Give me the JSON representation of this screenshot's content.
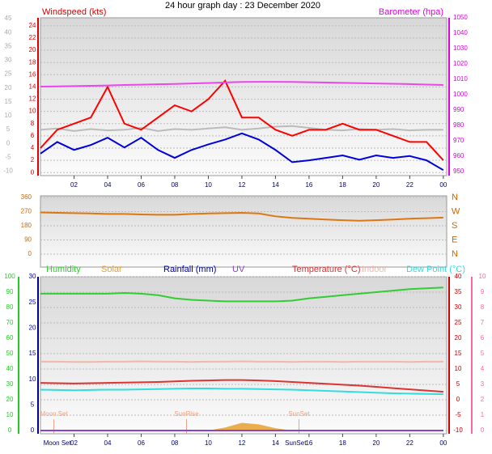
{
  "chart_data": [
    {
      "type": "line",
      "title": "24 hour graph day : 23 December 2020",
      "ylabel": "Windspeed (kts)",
      "y2label": "Barometer (hpa)",
      "x": [
        0,
        1,
        2,
        3,
        4,
        5,
        6,
        7,
        8,
        9,
        10,
        11,
        12,
        13,
        14,
        15,
        16,
        17,
        18,
        19,
        20,
        21,
        22,
        23,
        24
      ],
      "xlim": [
        0,
        24.2
      ],
      "xticks": [
        {
          "value": 2,
          "label": "02"
        },
        {
          "value": 4,
          "label": "04"
        },
        {
          "value": 6,
          "label": "06"
        },
        {
          "value": 8,
          "label": "08"
        },
        10,
        12,
        14,
        16,
        18,
        20,
        22,
        {
          "value": 24,
          "label": "00"
        }
      ],
      "ylim": [
        -0.5,
        25.3
      ],
      "yticks": [
        0,
        2,
        4,
        6,
        8,
        10,
        12,
        14,
        16,
        18,
        20,
        22,
        24
      ],
      "y2lim": [
        947.4,
        1050
      ],
      "y2ticks": [
        950,
        960,
        970,
        980,
        990,
        1000,
        1010,
        1020,
        1030,
        1040,
        1050
      ],
      "y3lim": [
        -11.6,
        45.3
      ],
      "y3ticks": [
        -10,
        -5,
        0,
        5,
        10,
        15,
        20,
        25,
        30,
        35,
        40,
        45
      ],
      "axis_colors": {
        "y": "#dd0000",
        "y2": "#dd00dd",
        "y3": "#aaaaaa"
      },
      "grid": true,
      "series": [
        {
          "color": "#bbbbbb",
          "values": [
            7.0,
            7.2,
            6.8,
            7.1,
            6.9,
            7.0,
            7.3,
            6.8,
            7.1,
            7.0,
            7.2,
            7.4,
            7.0,
            7.2,
            7.5,
            7.6,
            7.3,
            7.0,
            6.9,
            7.1,
            7.0,
            7.1,
            6.9,
            7.0,
            7.0
          ]
        },
        {
          "color": "#ff0000",
          "values": [
            4,
            7,
            8,
            9,
            14,
            8,
            7,
            9,
            11,
            10,
            12,
            15,
            9,
            9,
            7,
            6,
            7,
            7,
            8,
            7,
            7,
            6,
            5,
            5,
            2
          ]
        },
        {
          "color": "#0000dd",
          "values": [
            3.1,
            5.0,
            3.7,
            4.5,
            5.7,
            4.1,
            5.7,
            3.7,
            2.4,
            3.7,
            4.6,
            5.4,
            6.4,
            5.4,
            3.7,
            1.7,
            2.0,
            2.4,
            2.8,
            2.1,
            2.8,
            2.4,
            2.7,
            2.0,
            0.4
          ]
        },
        {
          "color": "#ee44ee",
          "axis": "y2",
          "values": [
            1005.3,
            1005.4,
            1005.6,
            1005.8,
            1006.0,
            1006.3,
            1006.5,
            1006.8,
            1007.0,
            1007.3,
            1007.6,
            1008.0,
            1008.3,
            1008.4,
            1008.4,
            1008.3,
            1008.1,
            1007.9,
            1007.7,
            1007.5,
            1007.3,
            1007.1,
            1006.9,
            1006.6,
            1006.3
          ]
        }
      ]
    },
    {
      "type": "line",
      "x": [
        0,
        1,
        2,
        3,
        4,
        5,
        6,
        7,
        8,
        9,
        10,
        11,
        12,
        13,
        14,
        15,
        16,
        17,
        18,
        19,
        20,
        21,
        22,
        23,
        24
      ],
      "xlim": [
        0,
        24.2
      ],
      "ylim": [
        -82,
        370
      ],
      "yticks": [
        0,
        90,
        180,
        270,
        360
      ],
      "y2lim": [
        -82,
        370
      ],
      "y2ticks": [
        {
          "value": 0,
          "label": "N"
        },
        {
          "value": 90,
          "label": "E"
        },
        {
          "value": 180,
          "label": "S"
        },
        {
          "value": 270,
          "label": "W"
        },
        {
          "value": 360,
          "label": "N"
        }
      ],
      "axis_colors": {
        "y": "#cc6600",
        "y2": "#cc6600"
      },
      "grid": true,
      "series": [
        {
          "color": "#dd7711",
          "values": [
            265,
            262,
            260,
            258,
            255,
            255,
            252,
            250,
            250,
            255,
            258,
            260,
            262,
            258,
            240,
            230,
            225,
            220,
            215,
            212,
            215,
            220,
            225,
            228,
            232
          ]
        }
      ]
    },
    {
      "type": "line",
      "x": [
        0,
        1,
        2,
        3,
        4,
        5,
        6,
        7,
        8,
        9,
        10,
        11,
        12,
        13,
        14,
        15,
        16,
        17,
        18,
        19,
        20,
        21,
        22,
        23,
        24
      ],
      "xlim": [
        0,
        24.2
      ],
      "xticks": [
        {
          "value": 2,
          "label": "02"
        },
        {
          "value": 4,
          "label": "04"
        },
        {
          "value": 6,
          "label": "06"
        },
        {
          "value": 8,
          "label": "08"
        },
        10,
        12,
        14,
        16,
        18,
        20,
        22,
        {
          "value": 24,
          "label": "00"
        }
      ],
      "ylim": [
        -2.1,
        100
      ],
      "yticks": [
        0,
        10,
        20,
        30,
        40,
        50,
        60,
        70,
        80,
        90,
        100
      ],
      "y2lim": [
        -11.05,
        40
      ],
      "y2ticks": [
        -10,
        -5,
        0,
        5,
        10,
        15,
        20,
        25,
        30,
        35,
        40
      ],
      "y3lim": [
        -0.63,
        30
      ],
      "y3ticks": [
        0,
        5,
        10,
        15,
        20,
        25,
        30
      ],
      "y4lim": [
        -0.21,
        10
      ],
      "y4ticks": [
        0,
        1,
        2,
        3,
        4,
        5,
        6,
        7,
        8,
        9,
        10
      ],
      "axis_colors": {
        "y": "#22cc22",
        "y2": "#cc0000",
        "y3": "#000099",
        "y4": "#ff66aa"
      },
      "grid": true,
      "annotation_color": "#f0a080",
      "annotations": [
        {
          "text": "Moon Set",
          "x": 0.8
        },
        {
          "text": "SunRise",
          "x": 8.7
        },
        {
          "text": "SunSet",
          "x": 15.4
        }
      ],
      "axis_annotations": [
        {
          "text": "Moon Set",
          "x": 1.0
        },
        {
          "text": "SunSet",
          "x": 15.2
        }
      ],
      "series": [
        {
          "name": "Solar",
          "color": "#e8a030",
          "area": true,
          "values": [
            0,
            0,
            0,
            0,
            0,
            0,
            0,
            0,
            0,
            0,
            0,
            2,
            5,
            4,
            1.5,
            0,
            0,
            0,
            0,
            0,
            0,
            0,
            0,
            0,
            0
          ]
        },
        {
          "name": "Humidity",
          "color": "#33cc33",
          "values": [
            89,
            89,
            89,
            89,
            89,
            89.5,
            89,
            88,
            86,
            85,
            84.5,
            84,
            84,
            84,
            84,
            84.5,
            86,
            87,
            88,
            89,
            90,
            91,
            92,
            92.5,
            93
          ]
        },
        {
          "name": "Rainfall (mm)",
          "color": "#000099",
          "axis": "y3",
          "values": [
            0,
            0,
            0,
            0,
            0,
            0,
            0,
            0,
            0,
            0,
            0,
            0,
            0,
            0,
            0,
            0,
            0,
            0,
            0,
            0,
            0,
            0,
            0,
            0,
            0
          ]
        },
        {
          "name": "UV",
          "color": "#8844cc",
          "axis": "y4",
          "values": [
            0,
            0,
            0,
            0,
            0,
            0,
            0,
            0,
            0,
            0,
            0,
            0,
            0,
            0,
            0,
            0,
            0,
            0,
            0,
            0,
            0,
            0,
            0,
            0,
            0
          ]
        },
        {
          "name": "Temperature (°C)",
          "color": "#dd3333",
          "axis": "y2",
          "values": [
            5.5,
            5.4,
            5.3,
            5.4,
            5.5,
            5.6,
            5.7,
            5.8,
            6.0,
            6.2,
            6.3,
            6.4,
            6.4,
            6.3,
            6.1,
            5.8,
            5.5,
            5.2,
            4.9,
            4.6,
            4.2,
            3.8,
            3.4,
            3.0,
            2.6
          ]
        },
        {
          "name": "Indoor",
          "color": "#f0b8a8",
          "axis": "y2",
          "values": [
            12.4,
            12.4,
            12.3,
            12.3,
            12.4,
            12.4,
            12.5,
            12.4,
            12.4,
            12.3,
            12.4,
            12.4,
            12.5,
            12.4,
            12.4,
            12.3,
            12.4,
            12.4,
            12.3,
            12.4,
            12.4,
            12.4,
            12.3,
            12.4,
            12.4
          ]
        },
        {
          "name": "Dew Point (°C)",
          "color": "#33dddd",
          "axis": "y2",
          "values": [
            3.3,
            3.2,
            3.1,
            3.2,
            3.3,
            3.3,
            3.4,
            3.5,
            3.6,
            3.7,
            3.7,
            3.6,
            3.6,
            3.5,
            3.4,
            3.3,
            3.1,
            2.9,
            2.7,
            2.5,
            2.3,
            2.1,
            2.0,
            1.9,
            1.8
          ]
        }
      ]
    }
  ]
}
